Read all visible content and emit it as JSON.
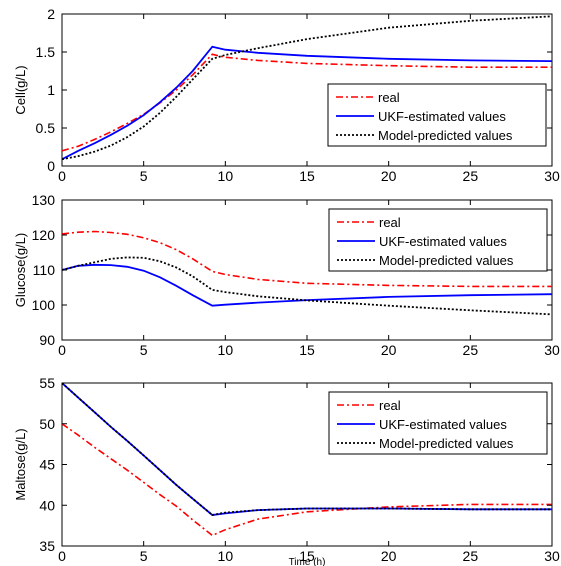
{
  "chart_data": [
    {
      "type": "line",
      "title": "",
      "xlabel": "",
      "ylabel": "Cell(g/L)",
      "xlim": [
        0,
        30
      ],
      "ylim": [
        0,
        2
      ],
      "xticks": [
        0,
        5,
        10,
        15,
        20,
        25,
        30
      ],
      "yticks": [
        0,
        0.5,
        1,
        1.5,
        2
      ],
      "ytick_labels": [
        "0",
        "0.5",
        "1",
        "1.5",
        "2"
      ],
      "grid": false,
      "legend_position": "center-right",
      "series": [
        {
          "name": "real",
          "color": "#ff0000",
          "style": "dash-dot",
          "x": [
            0,
            1,
            2,
            3,
            4,
            5,
            6,
            7,
            8,
            9.2,
            10,
            12,
            15,
            20,
            25,
            30
          ],
          "y": [
            0.2,
            0.26,
            0.35,
            0.45,
            0.56,
            0.68,
            0.83,
            1.0,
            1.2,
            1.47,
            1.43,
            1.39,
            1.35,
            1.32,
            1.3,
            1.3
          ]
        },
        {
          "name": "UKF-estimated values",
          "color": "#0000ff",
          "style": "solid",
          "x": [
            0,
            1,
            2,
            3,
            4,
            5,
            6,
            7,
            8,
            9.2,
            10,
            12,
            15,
            20,
            25,
            30
          ],
          "y": [
            0.09,
            0.2,
            0.3,
            0.41,
            0.53,
            0.67,
            0.84,
            1.03,
            1.25,
            1.57,
            1.53,
            1.49,
            1.45,
            1.41,
            1.39,
            1.38
          ]
        },
        {
          "name": "Model-predicted values",
          "color": "#000000",
          "style": "dotted",
          "x": [
            0,
            1,
            2,
            3,
            4,
            5,
            6,
            7,
            8,
            9.2,
            10,
            12,
            15,
            20,
            25,
            30
          ],
          "y": [
            0.09,
            0.13,
            0.19,
            0.27,
            0.38,
            0.52,
            0.7,
            0.91,
            1.14,
            1.41,
            1.46,
            1.55,
            1.67,
            1.82,
            1.91,
            1.97
          ]
        }
      ]
    },
    {
      "type": "line",
      "title": "",
      "xlabel": "",
      "ylabel": "Glucose(g/L)",
      "xlim": [
        0,
        30
      ],
      "ylim": [
        90,
        130
      ],
      "xticks": [
        0,
        5,
        10,
        15,
        20,
        25,
        30
      ],
      "yticks": [
        90,
        100,
        110,
        120,
        130
      ],
      "ytick_labels": [
        "90",
        "100",
        "110",
        "120",
        "130"
      ],
      "grid": false,
      "legend_position": "top-right",
      "series": [
        {
          "name": "real",
          "color": "#ff0000",
          "style": "dash-dot",
          "x": [
            0,
            1,
            2,
            3,
            4,
            5,
            6,
            7,
            8,
            9.2,
            10,
            12,
            15,
            20,
            25,
            30
          ],
          "y": [
            120.3,
            120.8,
            121.0,
            120.7,
            120.2,
            119.2,
            117.8,
            115.8,
            113.2,
            109.6,
            108.7,
            107.3,
            106.2,
            105.6,
            105.3,
            105.3
          ]
        },
        {
          "name": "UKF-estimated values",
          "color": "#0000ff",
          "style": "solid",
          "x": [
            0,
            1,
            2,
            3,
            4,
            5,
            6,
            7,
            8,
            9.2,
            10,
            12,
            15,
            20,
            25,
            30
          ],
          "y": [
            110.0,
            111.2,
            111.5,
            111.4,
            110.9,
            109.8,
            107.9,
            105.5,
            102.8,
            99.8,
            100.1,
            100.7,
            101.4,
            102.3,
            102.8,
            103.1
          ]
        },
        {
          "name": "Model-predicted values",
          "color": "#000000",
          "style": "dotted",
          "x": [
            0,
            1,
            2,
            3,
            4,
            5,
            6,
            7,
            8,
            9.2,
            10,
            12,
            15,
            20,
            25,
            30
          ],
          "y": [
            110.0,
            111.2,
            112.2,
            113.2,
            113.6,
            113.5,
            112.5,
            110.7,
            108.2,
            104.3,
            103.7,
            102.5,
            101.3,
            99.8,
            98.5,
            97.3
          ]
        }
      ]
    },
    {
      "type": "line",
      "title": "",
      "xlabel": "Time (h)",
      "ylabel": "Maltose(g/L)",
      "xlim": [
        0,
        30
      ],
      "ylim": [
        35,
        55
      ],
      "xticks": [
        0,
        5,
        10,
        15,
        20,
        25,
        30
      ],
      "yticks": [
        35,
        40,
        45,
        50,
        55
      ],
      "ytick_labels": [
        "35",
        "40",
        "45",
        "50",
        "55"
      ],
      "grid": false,
      "legend_position": "top-right",
      "series": [
        {
          "name": "real",
          "color": "#ff0000",
          "style": "dash-dot",
          "x": [
            0,
            1,
            2,
            3,
            4,
            5,
            6,
            7,
            8,
            9.2,
            10,
            12,
            15,
            20,
            25,
            30
          ],
          "y": [
            50.0,
            48.6,
            47.1,
            45.7,
            44.3,
            42.8,
            41.3,
            39.9,
            38.2,
            36.3,
            37.0,
            38.3,
            39.2,
            39.8,
            40.1,
            40.1
          ]
        },
        {
          "name": "UKF-estimated values",
          "color": "#0000ff",
          "style": "solid",
          "x": [
            0,
            1,
            2,
            3,
            4,
            5,
            6,
            7,
            8,
            9.2,
            10,
            12,
            15,
            20,
            25,
            30
          ],
          "y": [
            55.0,
            53.2,
            51.4,
            49.6,
            47.9,
            46.1,
            44.3,
            42.5,
            40.8,
            38.8,
            39.0,
            39.4,
            39.6,
            39.6,
            39.5,
            39.5
          ]
        },
        {
          "name": "Model-predicted values",
          "color": "#000000",
          "style": "dotted",
          "x": [
            0,
            1,
            2,
            3,
            4,
            5,
            6,
            7,
            8,
            9.2,
            10,
            12,
            15,
            20,
            25,
            30
          ],
          "y": [
            55.0,
            53.2,
            51.4,
            49.6,
            47.9,
            46.1,
            44.3,
            42.5,
            40.8,
            38.8,
            39.1,
            39.4,
            39.6,
            39.6,
            39.5,
            39.5
          ]
        }
      ]
    }
  ]
}
